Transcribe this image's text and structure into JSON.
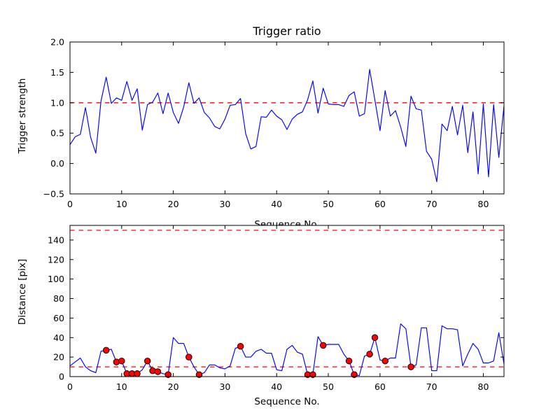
{
  "figure": {
    "background": "#ffffff",
    "line_color": "#0000ff",
    "threshold_color": "#ff0000",
    "marker_color": "#ff0000",
    "marker_edge_color": "#000000"
  },
  "chart_data": [
    {
      "type": "line",
      "title": "Trigger ratio",
      "xlabel": "Sequence No.",
      "ylabel": "Trigger strength",
      "xlim": [
        0,
        84
      ],
      "ylim": [
        -0.5,
        2.0
      ],
      "grid": false,
      "legend": null,
      "xticks": {
        "values": [
          0,
          10,
          20,
          30,
          40,
          50,
          60,
          70,
          80
        ],
        "labels": [
          "0",
          "10",
          "20",
          "30",
          "40",
          "50",
          "60",
          "70",
          "80"
        ]
      },
      "yticks": {
        "values": [
          2.0,
          1.5,
          1.0,
          0.5,
          0.0,
          -0.5
        ],
        "labels": [
          "2.0",
          "1.5",
          "1.0",
          "0.5",
          "0.0",
          "−0.5"
        ]
      },
      "thresholds": [
        {
          "y": 1.0,
          "color": "#ff0000",
          "style": "dashed"
        }
      ],
      "series": [
        {
          "name": "trigger-strength",
          "color": "#0000ff",
          "x_start": 0,
          "x_step": 1,
          "values": [
            0.31,
            0.44,
            0.48,
            0.92,
            0.43,
            0.17,
            1.03,
            1.42,
            0.99,
            1.08,
            1.04,
            1.35,
            1.04,
            1.23,
            0.55,
            0.97,
            1.01,
            1.16,
            0.82,
            1.16,
            0.84,
            0.66,
            0.93,
            1.33,
            0.99,
            1.08,
            0.84,
            0.75,
            0.61,
            0.57,
            0.73,
            0.96,
            0.97,
            1.07,
            0.49,
            0.24,
            0.28,
            0.77,
            0.76,
            0.88,
            0.78,
            0.72,
            0.56,
            0.73,
            0.81,
            0.85,
            1.05,
            1.36,
            0.83,
            1.24,
            0.98,
            0.97,
            0.97,
            0.94,
            1.12,
            1.18,
            0.78,
            0.82,
            1.55,
            1.05,
            0.54,
            1.2,
            0.78,
            0.87,
            0.6,
            0.28,
            1.11,
            0.9,
            0.88,
            0.2,
            0.07,
            -0.3,
            0.65,
            0.54,
            0.94,
            0.47,
            0.96,
            0.18,
            0.85,
            -0.17,
            0.98,
            -0.22,
            0.97,
            0.1,
            0.95
          ]
        }
      ],
      "markers": null
    },
    {
      "type": "line",
      "title": "",
      "xlabel": "Sequence No.",
      "ylabel": "Distance [pix]",
      "xlim": [
        0,
        84
      ],
      "ylim": [
        0,
        155
      ],
      "grid": false,
      "legend": null,
      "xticks": {
        "values": [
          0,
          10,
          20,
          30,
          40,
          50,
          60,
          70,
          80
        ],
        "labels": [
          "0",
          "10",
          "20",
          "30",
          "40",
          "50",
          "60",
          "70",
          "80"
        ]
      },
      "yticks": {
        "values": [
          0,
          20,
          40,
          60,
          80,
          100,
          120,
          140
        ],
        "labels": [
          "0",
          "20",
          "40",
          "60",
          "80",
          "100",
          "120",
          "140"
        ]
      },
      "thresholds": [
        {
          "y": 150,
          "color": "#ff0000",
          "style": "dashed"
        },
        {
          "y": 10,
          "color": "#ff0000",
          "style": "dashed"
        }
      ],
      "series": [
        {
          "name": "distance",
          "color": "#0000ff",
          "x_start": 0,
          "x_step": 1,
          "values": [
            11,
            15,
            19,
            10,
            6,
            4,
            26,
            27,
            28,
            15,
            16,
            3,
            3,
            3,
            7,
            16,
            6,
            5,
            3,
            2,
            40,
            34,
            34,
            20,
            10,
            2,
            4,
            12,
            12,
            9,
            8,
            11,
            29,
            31,
            20,
            20,
            26,
            28,
            24,
            24,
            7,
            6,
            28,
            32,
            25,
            23,
            2,
            2,
            41,
            32,
            33,
            33,
            33,
            23,
            16,
            2,
            1,
            21,
            23,
            40,
            17,
            16,
            19,
            19,
            54,
            49,
            10,
            12,
            50,
            50,
            6,
            6,
            52,
            49,
            49,
            48,
            11,
            23,
            34,
            28,
            14,
            14,
            16,
            45,
            13
          ]
        }
      ],
      "markers": {
        "color": "#ff0000",
        "edge": "#000000",
        "indices": [
          7,
          9,
          10,
          11,
          12,
          13,
          15,
          16,
          17,
          19,
          23,
          25,
          33,
          46,
          47,
          49,
          54,
          55,
          58,
          59,
          61,
          66
        ]
      }
    }
  ]
}
